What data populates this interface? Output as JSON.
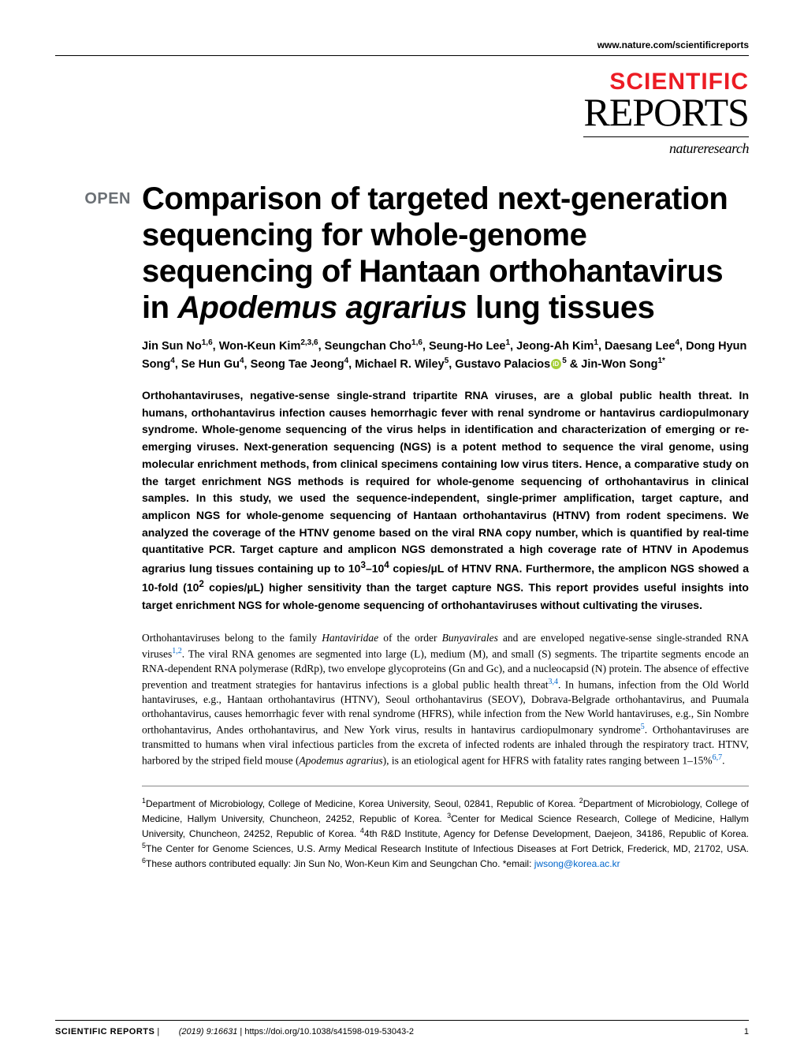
{
  "header": {
    "url": "www.nature.com/scientificreports"
  },
  "logo": {
    "line1": "SCIENTIFIC",
    "line2": "REPORTS",
    "line3": "natureresearch",
    "line1_color": "#ec1c24",
    "line1_fontsize": 30,
    "line2_fontsize": 50,
    "line3_fontsize": 18
  },
  "badge": {
    "text": "OPEN",
    "color": "#6b7075"
  },
  "title": {
    "html": "Comparison of targeted next-generation sequencing for whole-genome sequencing of Hantaan orthohantavirus in <span class='italic'>Apodemus agrarius</span> lung tissues",
    "fontsize": 40
  },
  "authors": {
    "html": "Jin Sun No<sup>1,6</sup>, Won-Keun Kim<sup>2,3,6</sup>, Seungchan Cho<sup>1,6</sup>, Seung-Ho Lee<sup>1</sup>, Jeong-Ah Kim<sup>1</sup>, Daesang Lee<sup>4</sup>, Dong Hyun Song<sup>4</sup>, Se Hun Gu<sup>4</sup>, Seong Tae Jeong<sup>4</sup>, Michael R. Wiley<sup>5</sup>, Gustavo Palacios<span class='orcid'></span><sup>5</sup> & Jin-Won Song<sup>1*</sup>"
  },
  "abstract": {
    "html": "Orthohantaviruses, negative-sense single-strand tripartite RNA viruses, are a global public health threat. In humans, orthohantavirus infection causes hemorrhagic fever with renal syndrome or hantavirus cardiopulmonary syndrome. Whole-genome sequencing of the virus helps in identification and characterization of emerging or re-emerging viruses. Next-generation sequencing (NGS) is a potent method to sequence the viral genome, using molecular enrichment methods, from clinical specimens containing low virus titers. Hence, a comparative study on the target enrichment NGS methods is required for whole-genome sequencing of orthohantavirus in clinical samples. In this study, we used the sequence-independent, single-primer amplification, target capture, and amplicon NGS for whole-genome sequencing of Hantaan orthohantavirus (HTNV) from rodent specimens. We analyzed the coverage of the HTNV genome based on the viral RNA copy number, which is quantified by real-time quantitative PCR. Target capture and amplicon NGS demonstrated a high coverage rate of HTNV in <span class='italic'>Apodemus agrarius</span> lung tissues containing up to 10<sup>3</sup>–10<sup>4</sup> copies/µL of HTNV RNA. Furthermore, the amplicon NGS showed a 10-fold (10<sup>2</sup> copies/µL) higher sensitivity than the target capture NGS. This report provides useful insights into target enrichment NGS for whole-genome sequencing of orthohantaviruses without cultivating the viruses."
  },
  "body": {
    "html": "Orthohantaviruses belong to the family <span class='italic'>Hantaviridae</span> of the order <span class='italic'>Bunyavirales</span> and are enveloped negative-sense single-stranded RNA viruses<span class='ref'>1,2</span>. The viral RNA genomes are segmented into large (L), medium (M), and small (S) segments. The tripartite segments encode an RNA-dependent RNA polymerase (RdRp), two envelope glycoproteins (Gn and Gc), and a nucleocapsid (N) protein. The absence of effective prevention and treatment strategies for hantavirus infections is a global public health threat<span class='ref'>3,4</span>. In humans, infection from the Old World hantaviruses, e.g., Hantaan orthohantavirus (HTNV), Seoul orthohantavirus (SEOV), Dobrava-Belgrade orthohantavirus, and Puumala orthohantavirus, causes hemorrhagic fever with renal syndrome (HFRS), while infection from the New World hantaviruses, e.g., Sin Nombre orthohantavirus, Andes orthohantavirus, and New York virus, results in hantavirus cardiopulmonary syndrome<span class='ref'>5</span>. Orthohantaviruses are transmitted to humans when viral infectious particles from the excreta of infected rodents are inhaled through the respiratory tract. HTNV, harbored by the striped field mouse (<span class='italic'>Apodemus agrarius</span>), is an etiological agent for HFRS with fatality rates ranging between 1–15%<span class='ref'>6,7</span>."
  },
  "affiliations": {
    "html": "<sup>1</sup>Department of Microbiology, College of Medicine, Korea University, Seoul, 02841, Republic of Korea. <sup>2</sup>Department of Microbiology, College of Medicine, Hallym University, Chuncheon, 24252, Republic of Korea. <sup>3</sup>Center for Medical Science Research, College of Medicine, Hallym University, Chuncheon, 24252, Republic of Korea. <sup>4</sup>4th R&D Institute, Agency for Defense Development, Daejeon, 34186, Republic of Korea. <sup>5</sup>The Center for Genome Sciences, U.S. Army Medical Research Institute of Infectious Diseases at Fort Detrick, Frederick, MD, 21702, USA. <sup>6</sup>These authors contributed equally: Jin Sun No, Won-Keun Kim and Seungchan Cho. *email: <span class='email-link'>jwsong@korea.ac.kr</span>"
  },
  "footer": {
    "journal": "SCIENTIFIC REPORTS",
    "citation": "(2019) 9:16631 ",
    "doi": "| https://doi.org/10.1038/s41598-019-53043-2",
    "page": "1"
  },
  "colors": {
    "red": "#ec1c24",
    "gray": "#6b7075",
    "link": "#0066cc",
    "orcid": "#a6ce39",
    "text": "#000000",
    "background": "#ffffff"
  }
}
